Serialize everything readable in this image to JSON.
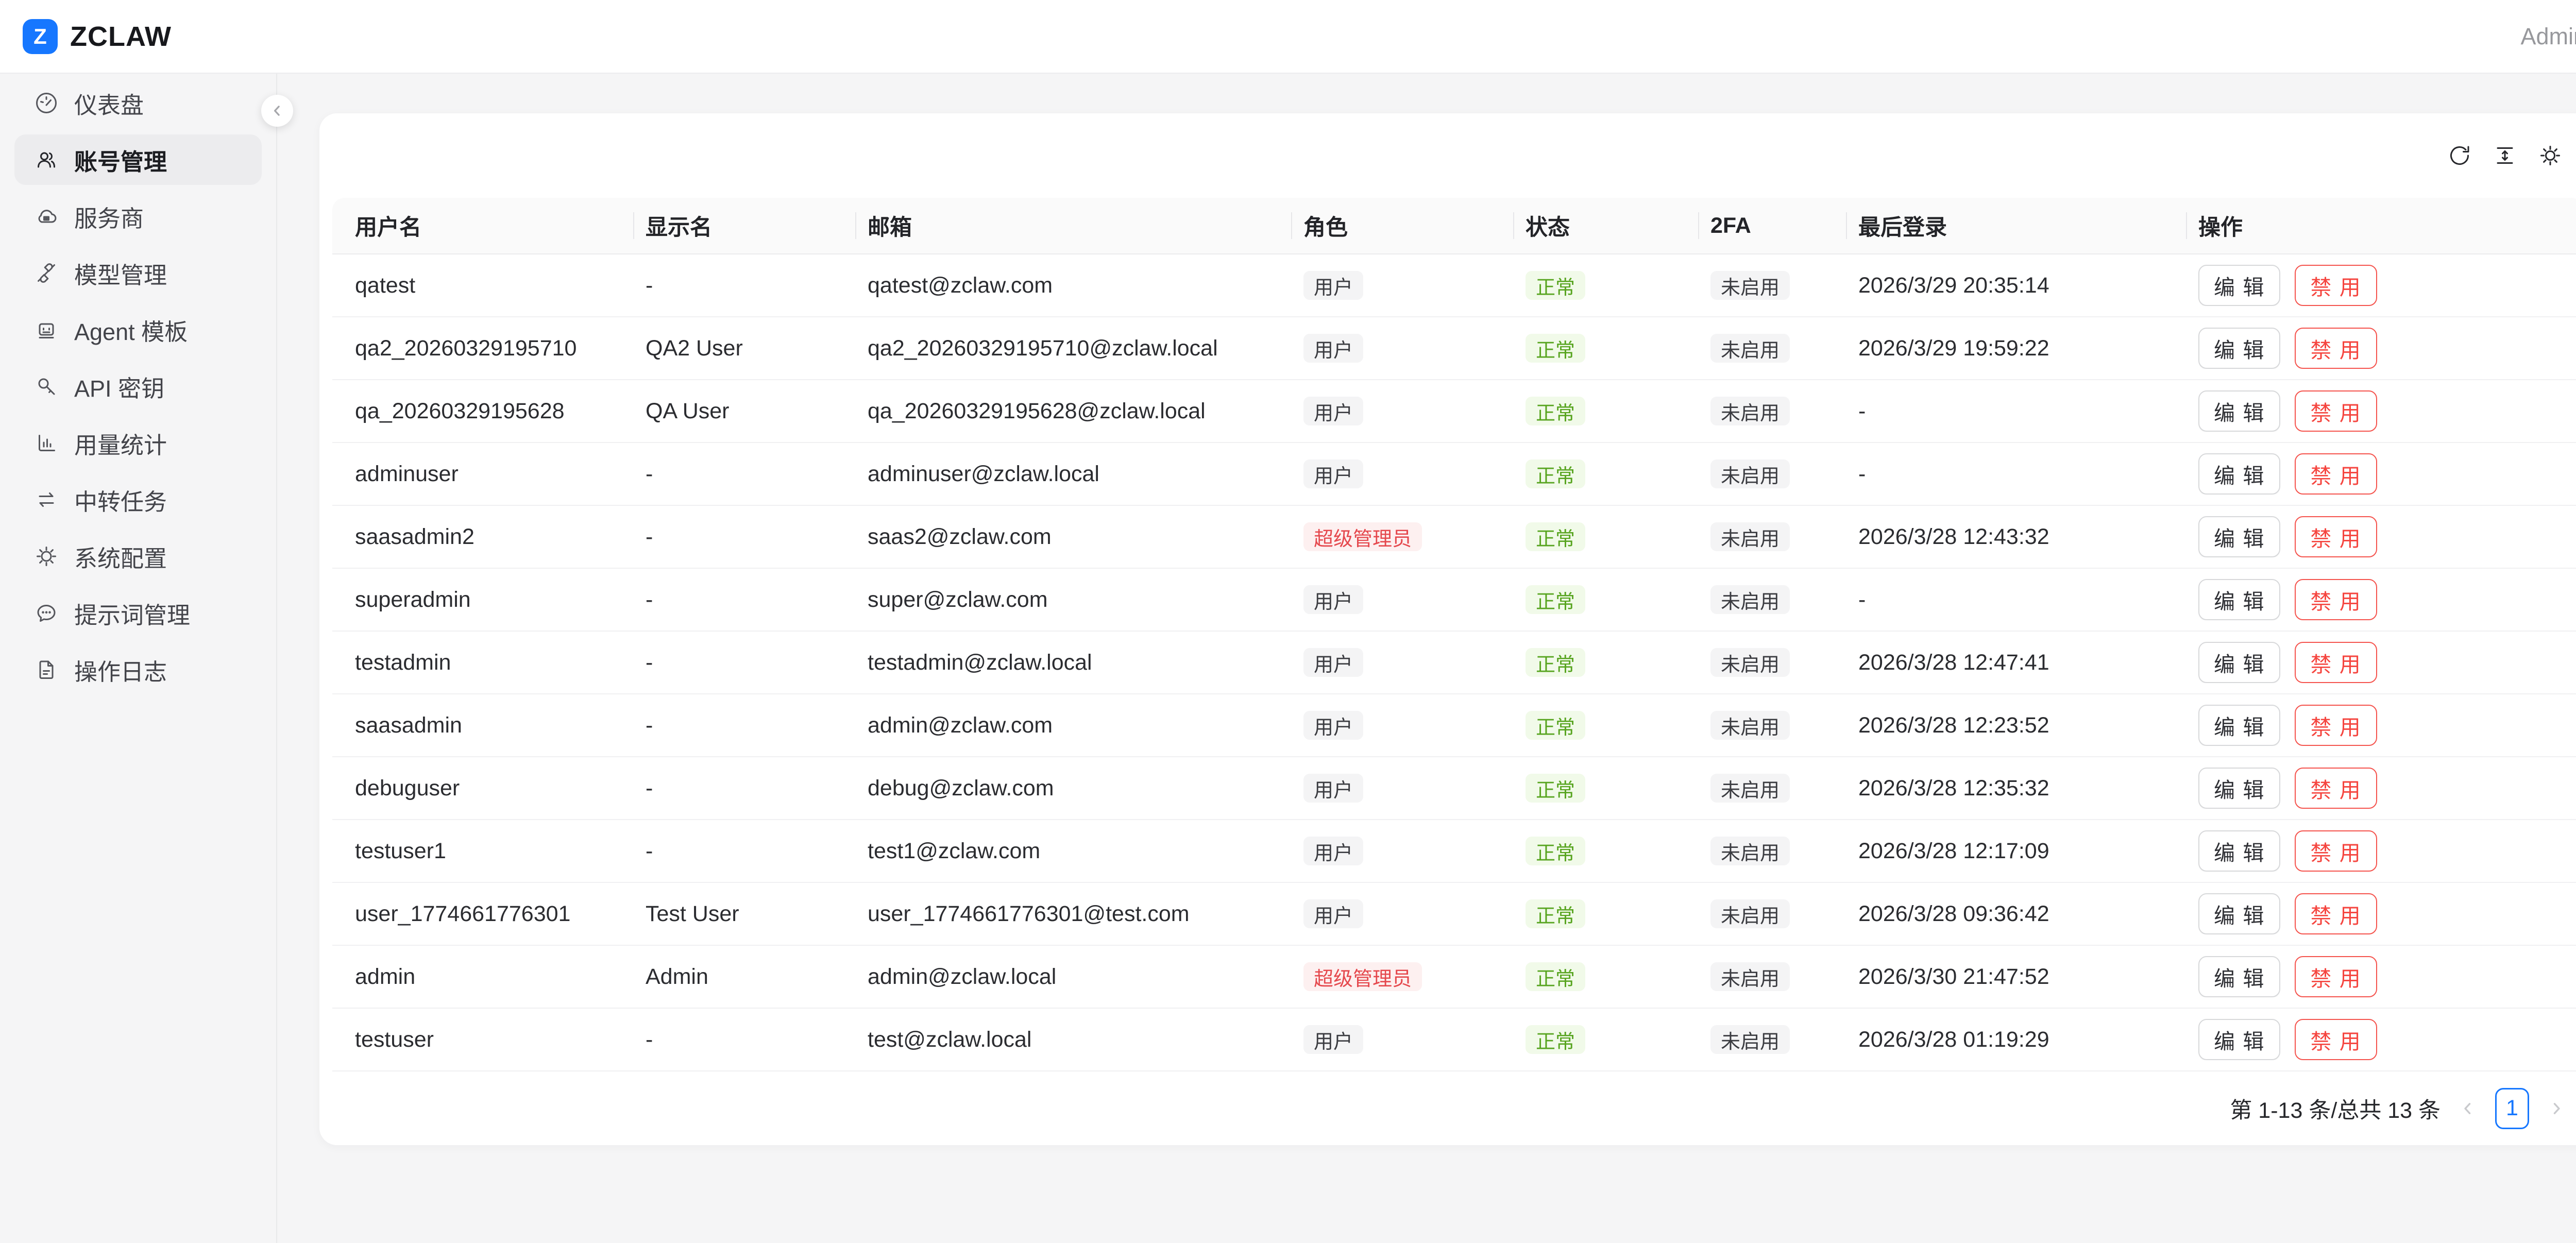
{
  "colors": {
    "accent": "#1677ff",
    "success_text": "#57a41f",
    "success_bg": "#f1fae9",
    "danger_text": "#e5484d",
    "danger_bg": "#fdf0f0",
    "neutral_badge_bg": "#f4f4f5"
  },
  "header": {
    "logo_letter": "Z",
    "brand": "ZCLAW",
    "user": "Admin"
  },
  "sidebar": {
    "items": [
      {
        "key": "dashboard",
        "label": "仪表盘",
        "icon": "dashboard",
        "active": false
      },
      {
        "key": "accounts",
        "label": "账号管理",
        "icon": "users",
        "active": true
      },
      {
        "key": "providers",
        "label": "服务商",
        "icon": "cloud",
        "active": false
      },
      {
        "key": "models",
        "label": "模型管理",
        "icon": "plug",
        "active": false
      },
      {
        "key": "agents",
        "label": "Agent 模板",
        "icon": "robot",
        "active": false
      },
      {
        "key": "apikeys",
        "label": "API 密钥",
        "icon": "key",
        "active": false
      },
      {
        "key": "usage",
        "label": "用量统计",
        "icon": "chart",
        "active": false
      },
      {
        "key": "relay",
        "label": "中转任务",
        "icon": "swap",
        "active": false
      },
      {
        "key": "system",
        "label": "系统配置",
        "icon": "gear",
        "active": false
      },
      {
        "key": "prompts",
        "label": "提示词管理",
        "icon": "message",
        "active": false
      },
      {
        "key": "logs",
        "label": "操作日志",
        "icon": "document",
        "active": false
      }
    ]
  },
  "toolbar": {
    "icons": [
      "reload",
      "density",
      "settings"
    ]
  },
  "table": {
    "columns": [
      "用户名",
      "显示名",
      "邮箱",
      "角色",
      "状态",
      "2FA",
      "最后登录",
      "操作"
    ],
    "actions": {
      "edit": "编 辑",
      "disable": "禁 用"
    },
    "rows": [
      {
        "username": "qatest",
        "display_name": "-",
        "email": "qatest@zclaw.com",
        "role": "用户",
        "role_variant": "gray",
        "status": "正常",
        "twofa": "未启用",
        "last_login": "2026/3/29 20:35:14"
      },
      {
        "username": "qa2_20260329195710",
        "display_name": "QA2 User",
        "email": "qa2_20260329195710@zclaw.local",
        "role": "用户",
        "role_variant": "gray",
        "status": "正常",
        "twofa": "未启用",
        "last_login": "2026/3/29 19:59:22"
      },
      {
        "username": "qa_20260329195628",
        "display_name": "QA User",
        "email": "qa_20260329195628@zclaw.local",
        "role": "用户",
        "role_variant": "gray",
        "status": "正常",
        "twofa": "未启用",
        "last_login": "-"
      },
      {
        "username": "adminuser",
        "display_name": "-",
        "email": "adminuser@zclaw.local",
        "role": "用户",
        "role_variant": "gray",
        "status": "正常",
        "twofa": "未启用",
        "last_login": "-"
      },
      {
        "username": "saasadmin2",
        "display_name": "-",
        "email": "saas2@zclaw.com",
        "role": "超级管理员",
        "role_variant": "red",
        "status": "正常",
        "twofa": "未启用",
        "last_login": "2026/3/28 12:43:32"
      },
      {
        "username": "superadmin",
        "display_name": "-",
        "email": "super@zclaw.com",
        "role": "用户",
        "role_variant": "gray",
        "status": "正常",
        "twofa": "未启用",
        "last_login": "-"
      },
      {
        "username": "testadmin",
        "display_name": "-",
        "email": "testadmin@zclaw.local",
        "role": "用户",
        "role_variant": "gray",
        "status": "正常",
        "twofa": "未启用",
        "last_login": "2026/3/28 12:47:41"
      },
      {
        "username": "saasadmin",
        "display_name": "-",
        "email": "admin@zclaw.com",
        "role": "用户",
        "role_variant": "gray",
        "status": "正常",
        "twofa": "未启用",
        "last_login": "2026/3/28 12:23:52"
      },
      {
        "username": "debuguser",
        "display_name": "-",
        "email": "debug@zclaw.com",
        "role": "用户",
        "role_variant": "gray",
        "status": "正常",
        "twofa": "未启用",
        "last_login": "2026/3/28 12:35:32"
      },
      {
        "username": "testuser1",
        "display_name": "-",
        "email": "test1@zclaw.com",
        "role": "用户",
        "role_variant": "gray",
        "status": "正常",
        "twofa": "未启用",
        "last_login": "2026/3/28 12:17:09"
      },
      {
        "username": "user_1774661776301",
        "display_name": "Test User",
        "email": "user_1774661776301@test.com",
        "role": "用户",
        "role_variant": "gray",
        "status": "正常",
        "twofa": "未启用",
        "last_login": "2026/3/28 09:36:42"
      },
      {
        "username": "admin",
        "display_name": "Admin",
        "email": "admin@zclaw.local",
        "role": "超级管理员",
        "role_variant": "red",
        "status": "正常",
        "twofa": "未启用",
        "last_login": "2026/3/30 21:47:52"
      },
      {
        "username": "testuser",
        "display_name": "-",
        "email": "test@zclaw.local",
        "role": "用户",
        "role_variant": "gray",
        "status": "正常",
        "twofa": "未启用",
        "last_login": "2026/3/28 01:19:29"
      }
    ]
  },
  "pagination": {
    "summary": "第 1-13 条/总共 13 条",
    "current_page": "1"
  }
}
